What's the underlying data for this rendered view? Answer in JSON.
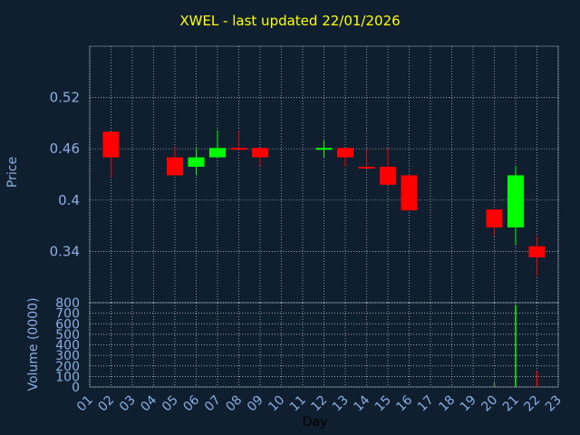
{
  "title": "XWEL - last updated 22/01/2026",
  "colors": {
    "background": "#0f1f30",
    "title": "#ffff00",
    "axis_text": "#8aaee0",
    "grid": "#ffffff",
    "up": "#00ff00",
    "down": "#ff0000"
  },
  "chart_data": [
    {
      "type": "candlestick",
      "ylabel": "Price",
      "ylim": [
        0.28,
        0.58
      ],
      "yticks": [
        "0.34",
        "0.4",
        "0.46",
        "0.52"
      ],
      "grid": true,
      "candles": [
        {
          "day": "02",
          "open": 0.48,
          "close": 0.45,
          "high": 0.48,
          "low": 0.427
        },
        {
          "day": "05",
          "open": 0.45,
          "close": 0.429,
          "high": 0.463,
          "low": 0.429
        },
        {
          "day": "06",
          "open": 0.439,
          "close": 0.45,
          "high": 0.461,
          "low": 0.429
        },
        {
          "day": "07",
          "open": 0.45,
          "close": 0.461,
          "high": 0.482,
          "low": 0.45
        },
        {
          "day": "08",
          "open": 0.461,
          "close": 0.46,
          "high": 0.481,
          "low": 0.46
        },
        {
          "day": "09",
          "open": 0.461,
          "close": 0.45,
          "high": 0.461,
          "low": 0.44
        },
        {
          "day": "12",
          "open": 0.46,
          "close": 0.461,
          "high": 0.47,
          "low": 0.45
        },
        {
          "day": "13",
          "open": 0.461,
          "close": 0.45,
          "high": 0.461,
          "low": 0.439
        },
        {
          "day": "14",
          "open": 0.439,
          "close": 0.438,
          "high": 0.46,
          "low": 0.438
        },
        {
          "day": "15",
          "open": 0.439,
          "close": 0.418,
          "high": 0.461,
          "low": 0.418
        },
        {
          "day": "16",
          "open": 0.429,
          "close": 0.388,
          "high": 0.429,
          "low": 0.388
        },
        {
          "day": "20",
          "open": 0.389,
          "close": 0.368,
          "high": 0.389,
          "low": 0.358
        },
        {
          "day": "21",
          "open": 0.368,
          "close": 0.429,
          "high": 0.44,
          "low": 0.348
        },
        {
          "day": "22",
          "open": 0.346,
          "close": 0.333,
          "high": 0.358,
          "low": 0.311
        }
      ]
    },
    {
      "type": "bar",
      "ylabel": "Volume (0000)",
      "xlabel": "Day",
      "ylim": [
        0,
        800
      ],
      "yticks": [
        "0",
        "100",
        "200",
        "300",
        "400",
        "500",
        "600",
        "700",
        "800"
      ],
      "grid": true,
      "categories": [
        "01",
        "02",
        "03",
        "04",
        "05",
        "06",
        "07",
        "08",
        "09",
        "10",
        "11",
        "12",
        "13",
        "14",
        "15",
        "16",
        "17",
        "18",
        "19",
        "20",
        "21",
        "22",
        "23"
      ],
      "values": [
        0,
        0,
        0,
        0,
        0,
        0,
        0,
        0,
        0,
        0,
        0,
        0,
        0,
        0,
        0,
        0,
        0,
        0,
        0,
        40,
        780,
        150,
        0
      ]
    }
  ]
}
